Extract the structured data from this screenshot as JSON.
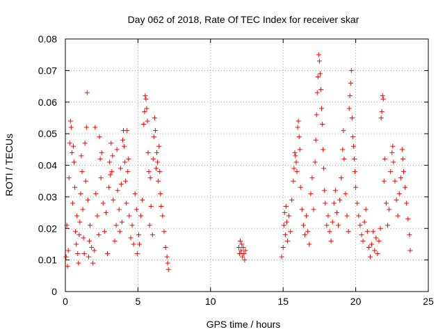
{
  "chart_data": {
    "type": "scatter",
    "title": "Day 062 of 2018, Rate Of TEC Index for receiver skar",
    "xlabel": "GPS time / hours",
    "ylabel": "ROTI / TECUs",
    "xlim": [
      0,
      25
    ],
    "ylim": [
      0,
      0.08
    ],
    "x_ticks": [
      "0",
      "5",
      "10",
      "15",
      "20",
      "25"
    ],
    "y_ticks": [
      "0",
      "0.01",
      "0.02",
      "0.03",
      "0.04",
      "0.05",
      "0.06",
      "0.07",
      "0.08"
    ],
    "grid": true,
    "marker": "+",
    "color": "#ff0000",
    "series": [
      {
        "points": [
          [
            0.05,
            0.011
          ],
          [
            0.1,
            0.021
          ],
          [
            0.15,
            0.008
          ],
          [
            0.2,
            0.013
          ],
          [
            0.25,
            0.036
          ],
          [
            0.3,
            0.047
          ],
          [
            0.35,
            0.054
          ],
          [
            0.4,
            0.052
          ],
          [
            0.45,
            0.044
          ],
          [
            0.5,
            0.028
          ],
          [
            0.55,
            0.046
          ],
          [
            0.6,
            0.041
          ],
          [
            0.65,
            0.033
          ],
          [
            0.7,
            0.019
          ],
          [
            0.75,
            0.015
          ],
          [
            0.8,
            0.024
          ],
          [
            0.85,
            0.012
          ],
          [
            0.9,
            0.009
          ],
          [
            0.95,
            0.018
          ],
          [
            1.0,
            0.022
          ],
          [
            1.05,
            0.031
          ],
          [
            1.1,
            0.043
          ],
          [
            1.15,
            0.038
          ],
          [
            1.2,
            0.026
          ],
          [
            1.25,
            0.017
          ],
          [
            1.3,
            0.012
          ],
          [
            1.35,
            0.047
          ],
          [
            1.4,
            0.035
          ],
          [
            1.45,
            0.052
          ],
          [
            1.5,
            0.063
          ],
          [
            1.55,
            0.029
          ],
          [
            1.6,
            0.011
          ],
          [
            1.65,
            0.016
          ],
          [
            1.7,
            0.021
          ],
          [
            1.8,
            0.014
          ],
          [
            1.9,
            0.009
          ],
          [
            2.0,
            0.013
          ],
          [
            2.05,
            0.052
          ],
          [
            2.1,
            0.031
          ],
          [
            2.2,
            0.024
          ],
          [
            2.3,
            0.018
          ],
          [
            2.35,
            0.049
          ],
          [
            2.4,
            0.042
          ],
          [
            2.45,
            0.036
          ],
          [
            2.5,
            0.044
          ],
          [
            2.6,
            0.028
          ],
          [
            2.7,
            0.019
          ],
          [
            2.8,
            0.025
          ],
          [
            2.9,
            0.012
          ],
          [
            3.0,
            0.033
          ],
          [
            3.05,
            0.041
          ],
          [
            3.1,
            0.037
          ],
          [
            3.15,
            0.047
          ],
          [
            3.2,
            0.038
          ],
          [
            3.25,
            0.043
          ],
          [
            3.3,
            0.029
          ],
          [
            3.4,
            0.016
          ],
          [
            3.5,
            0.021
          ],
          [
            3.55,
            0.045
          ],
          [
            3.6,
            0.032
          ],
          [
            3.7,
            0.026
          ],
          [
            3.75,
            0.019
          ],
          [
            3.8,
            0.039
          ],
          [
            3.85,
            0.034
          ],
          [
            3.9,
            0.022
          ],
          [
            3.95,
            0.048
          ],
          [
            4.0,
            0.051
          ],
          [
            4.05,
            0.046
          ],
          [
            4.1,
            0.041
          ],
          [
            4.15,
            0.035
          ],
          [
            4.2,
            0.028
          ],
          [
            4.25,
            0.051
          ],
          [
            4.3,
            0.038
          ],
          [
            4.35,
            0.042
          ],
          [
            4.4,
            0.024
          ],
          [
            4.5,
            0.017
          ],
          [
            4.6,
            0.021
          ],
          [
            4.7,
            0.015
          ],
          [
            4.8,
            0.031
          ],
          [
            4.9,
            0.026
          ],
          [
            4.95,
            0.012
          ],
          [
            5.05,
            0.018
          ],
          [
            5.1,
            0.015
          ],
          [
            5.2,
            0.024
          ],
          [
            5.3,
            0.029
          ],
          [
            5.4,
            0.053
          ],
          [
            5.45,
            0.057
          ],
          [
            5.5,
            0.062
          ],
          [
            5.55,
            0.061
          ],
          [
            5.6,
            0.058
          ],
          [
            5.65,
            0.054
          ],
          [
            5.7,
            0.044
          ],
          [
            5.75,
            0.038
          ],
          [
            5.8,
            0.021
          ],
          [
            5.85,
            0.036
          ],
          [
            5.9,
            0.027
          ],
          [
            6.0,
            0.018
          ],
          [
            6.05,
            0.042
          ],
          [
            6.1,
            0.049
          ],
          [
            6.15,
            0.055
          ],
          [
            6.2,
            0.051
          ],
          [
            6.25,
            0.039
          ],
          [
            6.3,
            0.044
          ],
          [
            6.35,
            0.041
          ],
          [
            6.4,
            0.035
          ],
          [
            6.45,
            0.046
          ],
          [
            6.5,
            0.038
          ],
          [
            6.55,
            0.031
          ],
          [
            6.6,
            0.027
          ],
          [
            6.7,
            0.024
          ],
          [
            6.8,
            0.019
          ],
          [
            6.9,
            0.014
          ],
          [
            7.0,
            0.011
          ],
          [
            7.05,
            0.009
          ],
          [
            7.1,
            0.007
          ],
          [
            11.95,
            0.014
          ],
          [
            12.0,
            0.012
          ],
          [
            12.05,
            0.016
          ],
          [
            12.1,
            0.013
          ],
          [
            12.15,
            0.015
          ],
          [
            12.2,
            0.011
          ],
          [
            12.25,
            0.014
          ],
          [
            12.3,
            0.012
          ],
          [
            12.35,
            0.01
          ],
          [
            12.4,
            0.013
          ],
          [
            14.9,
            0.011
          ],
          [
            15.0,
            0.014
          ],
          [
            15.05,
            0.021
          ],
          [
            15.1,
            0.025
          ],
          [
            15.15,
            0.018
          ],
          [
            15.2,
            0.027
          ],
          [
            15.25,
            0.022
          ],
          [
            15.3,
            0.016
          ],
          [
            15.4,
            0.024
          ],
          [
            15.5,
            0.019
          ],
          [
            15.6,
            0.029
          ],
          [
            15.7,
            0.035
          ],
          [
            15.75,
            0.039
          ],
          [
            15.8,
            0.044
          ],
          [
            15.85,
            0.043
          ],
          [
            15.9,
            0.041
          ],
          [
            15.95,
            0.038
          ],
          [
            16.0,
            0.052
          ],
          [
            16.05,
            0.054
          ],
          [
            16.1,
            0.049
          ],
          [
            16.15,
            0.045
          ],
          [
            16.2,
            0.033
          ],
          [
            16.3,
            0.026
          ],
          [
            16.4,
            0.021
          ],
          [
            16.5,
            0.018
          ],
          [
            16.6,
            0.024
          ],
          [
            16.7,
            0.019
          ],
          [
            16.8,
            0.015
          ],
          [
            16.9,
            0.031
          ],
          [
            17.0,
            0.036
          ],
          [
            17.1,
            0.026
          ],
          [
            17.2,
            0.041
          ],
          [
            17.25,
            0.048
          ],
          [
            17.3,
            0.056
          ],
          [
            17.35,
            0.063
          ],
          [
            17.4,
            0.068
          ],
          [
            17.45,
            0.075
          ],
          [
            17.5,
            0.073
          ],
          [
            17.55,
            0.069
          ],
          [
            17.6,
            0.064
          ],
          [
            17.65,
            0.058
          ],
          [
            17.7,
            0.053
          ],
          [
            17.75,
            0.045
          ],
          [
            17.8,
            0.039
          ],
          [
            17.85,
            0.032
          ],
          [
            17.9,
            0.028
          ],
          [
            18.0,
            0.021
          ],
          [
            18.1,
            0.024
          ],
          [
            18.2,
            0.019
          ],
          [
            18.3,
            0.016
          ],
          [
            18.4,
            0.022
          ],
          [
            18.5,
            0.028
          ],
          [
            18.6,
            0.032
          ],
          [
            18.7,
            0.025
          ],
          [
            18.8,
            0.021
          ],
          [
            18.9,
            0.029
          ],
          [
            19.0,
            0.036
          ],
          [
            19.1,
            0.045
          ],
          [
            19.15,
            0.051
          ],
          [
            19.2,
            0.042
          ],
          [
            19.3,
            0.031
          ],
          [
            19.4,
            0.024
          ],
          [
            19.5,
            0.019
          ],
          [
            19.55,
            0.058
          ],
          [
            19.6,
            0.062
          ],
          [
            19.65,
            0.066
          ],
          [
            19.7,
            0.07
          ],
          [
            19.75,
            0.055
          ],
          [
            19.8,
            0.049
          ],
          [
            19.85,
            0.046
          ],
          [
            19.9,
            0.042
          ],
          [
            19.95,
            0.038
          ],
          [
            20.0,
            0.033
          ],
          [
            20.1,
            0.028
          ],
          [
            20.2,
            0.024
          ],
          [
            20.3,
            0.021
          ],
          [
            20.4,
            0.018
          ],
          [
            20.5,
            0.016
          ],
          [
            20.6,
            0.022
          ],
          [
            20.7,
            0.026
          ],
          [
            20.8,
            0.019
          ],
          [
            20.9,
            0.014
          ],
          [
            21.0,
            0.011
          ],
          [
            21.1,
            0.015
          ],
          [
            21.2,
            0.019
          ],
          [
            21.3,
            0.013
          ],
          [
            21.4,
            0.017
          ],
          [
            21.5,
            0.012
          ],
          [
            21.6,
            0.016
          ],
          [
            21.7,
            0.02
          ],
          [
            21.75,
            0.055
          ],
          [
            21.8,
            0.057
          ],
          [
            21.85,
            0.062
          ],
          [
            21.9,
            0.061
          ],
          [
            21.95,
            0.035
          ],
          [
            22.0,
            0.042
          ],
          [
            22.1,
            0.028
          ],
          [
            22.2,
            0.021
          ],
          [
            22.3,
            0.026
          ],
          [
            22.4,
            0.038
          ],
          [
            22.5,
            0.044
          ],
          [
            22.55,
            0.046
          ],
          [
            22.6,
            0.041
          ],
          [
            22.7,
            0.035
          ],
          [
            22.8,
            0.029
          ],
          [
            22.9,
            0.024
          ],
          [
            23.0,
            0.031
          ],
          [
            23.1,
            0.036
          ],
          [
            23.2,
            0.045
          ],
          [
            23.25,
            0.042
          ],
          [
            23.3,
            0.038
          ],
          [
            23.4,
            0.033
          ],
          [
            23.5,
            0.028
          ],
          [
            23.6,
            0.023
          ],
          [
            23.7,
            0.018
          ],
          [
            23.75,
            0.013
          ]
        ]
      }
    ]
  }
}
